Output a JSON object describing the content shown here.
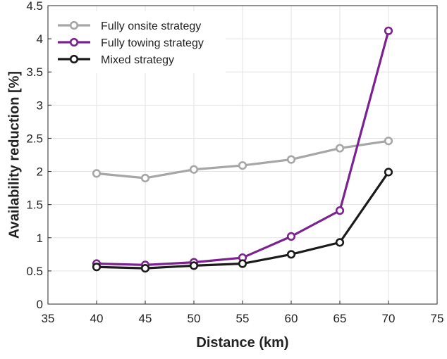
{
  "chart_data": {
    "type": "line",
    "title": "",
    "xlabel": "Distance (km)",
    "ylabel": "Availability reduction [%]",
    "xlim": [
      35,
      75
    ],
    "ylim": [
      0,
      4.5
    ],
    "xticks": [
      "35",
      "40",
      "45",
      "50",
      "55",
      "60",
      "65",
      "70",
      "75"
    ],
    "yticks": [
      "0",
      "0.5",
      "1",
      "1.5",
      "2",
      "2.5",
      "3",
      "3.5",
      "4",
      "4.5"
    ],
    "grid": true,
    "legend_position": "top-left",
    "x": [
      40,
      45,
      50,
      55,
      60,
      65,
      70
    ],
    "series": [
      {
        "name": "Fully onsite strategy",
        "color": "#a6a6a6",
        "values": [
          1.97,
          1.9,
          2.03,
          2.09,
          2.18,
          2.35,
          2.46
        ]
      },
      {
        "name": "Fully towing strategy",
        "color": "#7b2190",
        "values": [
          0.61,
          0.59,
          0.63,
          0.7,
          1.02,
          1.41,
          4.12
        ]
      },
      {
        "name": "Mixed strategy",
        "color": "#1a1a1a",
        "values": [
          0.56,
          0.54,
          0.58,
          0.61,
          0.75,
          0.93,
          1.99
        ]
      }
    ]
  }
}
